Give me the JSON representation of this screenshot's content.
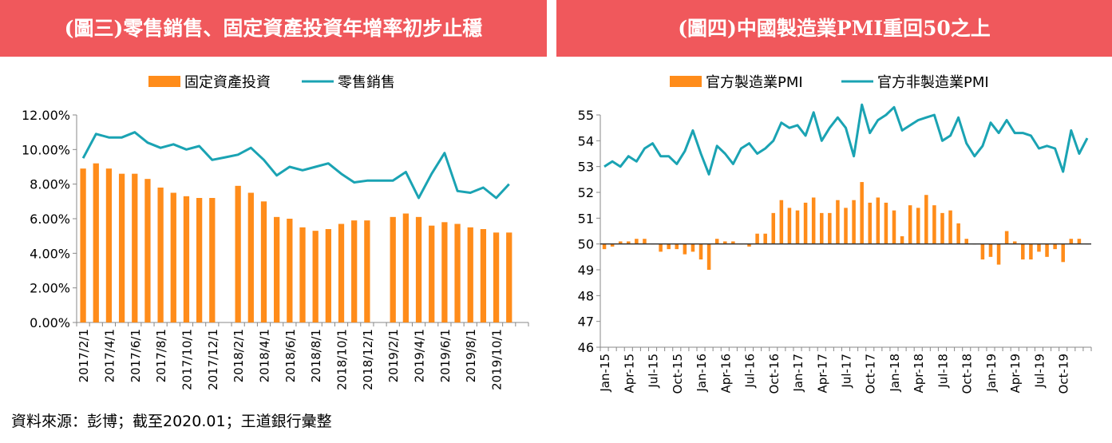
{
  "panel_left": {
    "title": "(圖三)零售銷售、固定資產投資年增率初步止穩",
    "legend": [
      "固定資產投資",
      "零售銷售"
    ]
  },
  "panel_right": {
    "title": "(圖四)中國製造業PMI重回50之上",
    "legend": [
      "官方製造業PMI",
      "官方非製造業PMI"
    ]
  },
  "source": "資料來源：彭博；截至2020.01；王道銀行彙整",
  "colors": {
    "bar": "#ff8c1a",
    "line": "#1aa3b3",
    "title_bg": "#f0585c",
    "ref_line": "#333333"
  },
  "chart_data": [
    {
      "type": "bar",
      "title": "(圖三)零售銷售、固定資產投資年增率初步止穩",
      "ylim": [
        0,
        12
      ],
      "y_ticks": [
        "0.00%",
        "2.00%",
        "4.00%",
        "6.00%",
        "8.00%",
        "10.00%",
        "12.00%"
      ],
      "x_tick_labels": [
        "2017/2/1",
        "2017/4/1",
        "2017/6/1",
        "2017/8/1",
        "2017/10/1",
        "2017/12/1",
        "2018/2/1",
        "2018/4/1",
        "2018/6/1",
        "2018/8/1",
        "2018/10/1",
        "2018/12/1",
        "2019/2/1",
        "2019/4/1",
        "2019/6/1",
        "2019/8/1",
        "2019/10/1"
      ],
      "categories": [
        "2017-02",
        "2017-03",
        "2017-04",
        "2017-05",
        "2017-06",
        "2017-07",
        "2017-08",
        "2017-09",
        "2017-10",
        "2017-11",
        "2017-12",
        "2018-01",
        "2018-02",
        "2018-03",
        "2018-04",
        "2018-05",
        "2018-06",
        "2018-07",
        "2018-08",
        "2018-09",
        "2018-10",
        "2018-11",
        "2018-12",
        "2019-01",
        "2019-02",
        "2019-03",
        "2019-04",
        "2019-05",
        "2019-06",
        "2019-07",
        "2019-08",
        "2019-09",
        "2019-10",
        "2019-11",
        "2019-12"
      ],
      "series": [
        {
          "name": "固定資產投資",
          "kind": "bar",
          "values": [
            8.9,
            9.2,
            8.9,
            8.6,
            8.6,
            8.3,
            7.8,
            7.5,
            7.3,
            7.2,
            7.2,
            null,
            7.9,
            7.5,
            7.0,
            6.1,
            6.0,
            5.5,
            5.3,
            5.4,
            5.7,
            5.9,
            5.9,
            null,
            6.1,
            6.3,
            6.1,
            5.6,
            5.8,
            5.7,
            5.5,
            5.4,
            5.2,
            5.2,
            null
          ]
        },
        {
          "name": "零售銷售",
          "kind": "line",
          "values": [
            9.5,
            10.9,
            10.7,
            10.7,
            11.0,
            10.4,
            10.1,
            10.3,
            10.0,
            10.2,
            9.4,
            9.55,
            9.7,
            10.1,
            9.4,
            8.5,
            9.0,
            8.8,
            9.0,
            9.2,
            8.6,
            8.1,
            8.2,
            8.2,
            8.2,
            8.7,
            7.2,
            8.6,
            9.8,
            7.6,
            7.5,
            7.8,
            7.2,
            8.0,
            null
          ]
        }
      ]
    },
    {
      "type": "bar",
      "title": "(圖四)中國製造業PMI重回50之上",
      "ylim": [
        46,
        55
      ],
      "y_ticks": [
        "46",
        "47",
        "48",
        "49",
        "50",
        "51",
        "52",
        "53",
        "54",
        "55"
      ],
      "x_tick_labels": [
        "Jan-15",
        "Apr-15",
        "Jul-15",
        "Oct-15",
        "Jan-16",
        "Apr-16",
        "Jul-16",
        "Oct-16",
        "Jan-17",
        "Apr-17",
        "Jul-17",
        "Oct-17",
        "Jan-18",
        "Apr-18",
        "Jul-18",
        "Oct-18",
        "Jan-19",
        "Apr-19",
        "Jul-19",
        "Oct-19"
      ],
      "categories": [
        "2015-01",
        "2015-02",
        "2015-03",
        "2015-04",
        "2015-05",
        "2015-06",
        "2015-07",
        "2015-08",
        "2015-09",
        "2015-10",
        "2015-11",
        "2015-12",
        "2016-01",
        "2016-02",
        "2016-03",
        "2016-04",
        "2016-05",
        "2016-06",
        "2016-07",
        "2016-08",
        "2016-09",
        "2016-10",
        "2016-11",
        "2016-12",
        "2017-01",
        "2017-02",
        "2017-03",
        "2017-04",
        "2017-05",
        "2017-06",
        "2017-07",
        "2017-08",
        "2017-09",
        "2017-10",
        "2017-11",
        "2017-12",
        "2018-01",
        "2018-02",
        "2018-03",
        "2018-04",
        "2018-05",
        "2018-06",
        "2018-07",
        "2018-08",
        "2018-09",
        "2018-10",
        "2018-11",
        "2018-12",
        "2019-01",
        "2019-02",
        "2019-03",
        "2019-04",
        "2019-05",
        "2019-06",
        "2019-07",
        "2019-08",
        "2019-09",
        "2019-10",
        "2019-11",
        "2019-12",
        "2020-01"
      ],
      "reference_line": 50,
      "series": [
        {
          "name": "官方製造業PMI",
          "kind": "bar",
          "values": [
            49.8,
            49.9,
            50.1,
            50.1,
            50.2,
            50.2,
            50.0,
            49.7,
            49.8,
            49.8,
            49.6,
            49.7,
            49.4,
            49.0,
            50.2,
            50.1,
            50.1,
            50.0,
            49.9,
            50.4,
            50.4,
            51.2,
            51.7,
            51.4,
            51.3,
            51.6,
            51.8,
            51.2,
            51.2,
            51.7,
            51.4,
            51.7,
            52.4,
            51.6,
            51.8,
            51.6,
            51.3,
            50.3,
            51.5,
            51.4,
            51.9,
            51.5,
            51.2,
            51.3,
            50.8,
            50.2,
            50.0,
            49.4,
            49.5,
            49.2,
            50.5,
            50.1,
            49.4,
            49.4,
            49.7,
            49.5,
            49.8,
            49.3,
            50.2,
            50.2,
            50.0
          ]
        },
        {
          "name": "官方非製造業PMI",
          "kind": "line",
          "values": [
            53.0,
            53.2,
            53.0,
            53.4,
            53.2,
            53.7,
            53.9,
            53.4,
            53.4,
            53.1,
            53.6,
            54.4,
            53.5,
            52.7,
            53.8,
            53.5,
            53.1,
            53.7,
            53.9,
            53.5,
            53.7,
            54.0,
            54.7,
            54.5,
            54.6,
            54.2,
            55.1,
            54.0,
            54.5,
            54.9,
            54.5,
            53.4,
            55.4,
            54.3,
            54.8,
            55.0,
            55.3,
            54.4,
            54.6,
            54.8,
            54.9,
            55.0,
            54.0,
            54.2,
            54.9,
            53.9,
            53.4,
            53.8,
            54.7,
            54.3,
            54.8,
            54.3,
            54.3,
            54.2,
            53.7,
            53.8,
            53.7,
            52.8,
            54.4,
            53.5,
            54.1
          ]
        }
      ]
    }
  ]
}
